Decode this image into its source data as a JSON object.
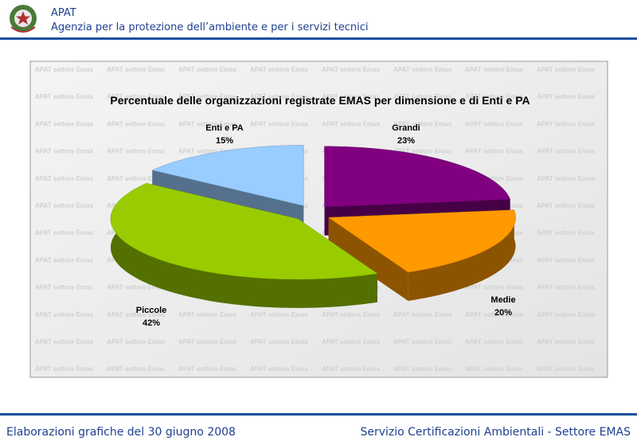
{
  "header": {
    "title": "APAT",
    "subtitle": "Agenzia per la protezione dell’ambiente e per i servizi tecnici"
  },
  "watermark": "APAT settore Emas",
  "chart_data": {
    "type": "pie",
    "title": "Percentuale delle organizzazioni registrate EMAS per dimensione e di Enti e PA",
    "categories": [
      "Grandi",
      "Medie",
      "Piccole",
      "Enti e PA"
    ],
    "values": [
      23,
      20,
      42,
      15
    ],
    "value_labels": [
      "23%",
      "20%",
      "42%",
      "15%"
    ],
    "colors": [
      "#800080",
      "#ff9900",
      "#99cc00",
      "#99ccff"
    ]
  },
  "footer": {
    "left": "Elaborazioni grafiche del 30 giugno 2008",
    "right": "Servizio Certificazioni Ambientali - Settore EMAS"
  }
}
